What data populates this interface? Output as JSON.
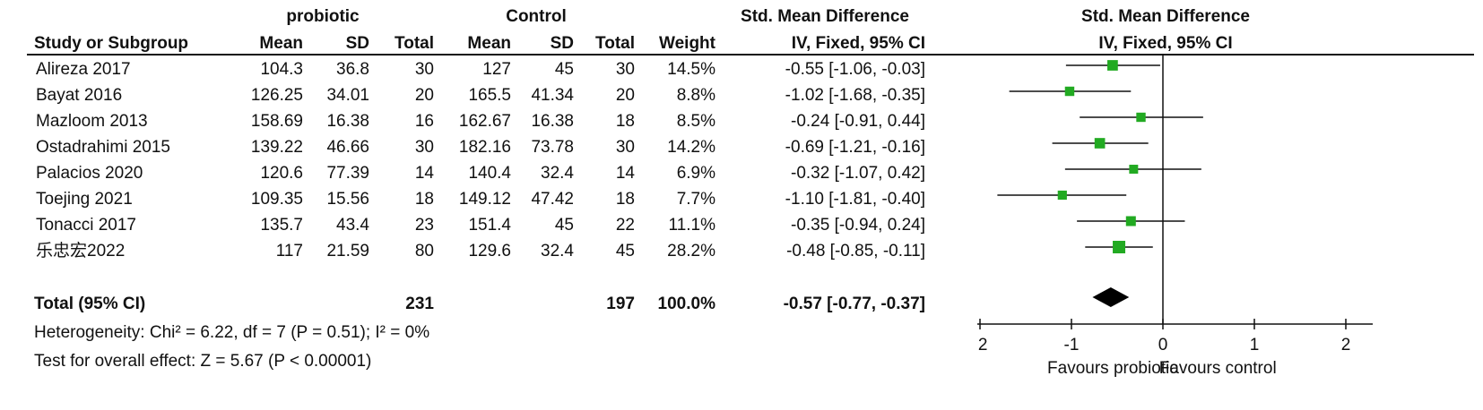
{
  "headers": {
    "group_exp": "probiotic",
    "group_ctrl": "Control",
    "smd_title": "Std. Mean Difference",
    "study": "Study or Subgroup",
    "mean": "Mean",
    "sd": "SD",
    "total": "Total",
    "weight": "Weight",
    "method": "IV, Fixed, 95% CI",
    "plot_title": "Std. Mean Difference",
    "plot_method": "IV, Fixed, 95% CI"
  },
  "studies": [
    {
      "name": "Alireza 2017",
      "m1": "104.3",
      "sd1": "36.8",
      "n1": "30",
      "m2": "127",
      "sd2": "45",
      "n2": "30",
      "weight": "14.5%",
      "ci": "-0.55 [-1.06, -0.03]"
    },
    {
      "name": "Bayat 2016",
      "m1": "126.25",
      "sd1": "34.01",
      "n1": "20",
      "m2": "165.5",
      "sd2": "41.34",
      "n2": "20",
      "weight": "8.8%",
      "ci": "-1.02 [-1.68, -0.35]"
    },
    {
      "name": "Mazloom 2013",
      "m1": "158.69",
      "sd1": "16.38",
      "n1": "16",
      "m2": "162.67",
      "sd2": "16.38",
      "n2": "18",
      "weight": "8.5%",
      "ci": "-0.24 [-0.91, 0.44]"
    },
    {
      "name": "Ostadrahimi 2015",
      "m1": "139.22",
      "sd1": "46.66",
      "n1": "30",
      "m2": "182.16",
      "sd2": "73.78",
      "n2": "30",
      "weight": "14.2%",
      "ci": "-0.69 [-1.21, -0.16]"
    },
    {
      "name": "Palacios 2020",
      "m1": "120.6",
      "sd1": "77.39",
      "n1": "14",
      "m2": "140.4",
      "sd2": "32.4",
      "n2": "14",
      "weight": "6.9%",
      "ci": "-0.32 [-1.07, 0.42]"
    },
    {
      "name": "Toejing 2021",
      "m1": "109.35",
      "sd1": "15.56",
      "n1": "18",
      "m2": "149.12",
      "sd2": "47.42",
      "n2": "18",
      "weight": "7.7%",
      "ci": "-1.10 [-1.81, -0.40]"
    },
    {
      "name": "Tonacci 2017",
      "m1": "135.7",
      "sd1": "43.4",
      "n1": "23",
      "m2": "151.4",
      "sd2": "45",
      "n2": "22",
      "weight": "11.1%",
      "ci": "-0.35 [-0.94, 0.24]"
    },
    {
      "name": "乐忠宏2022",
      "m1": "117",
      "sd1": "21.59",
      "n1": "80",
      "m2": "129.6",
      "sd2": "32.4",
      "n2": "45",
      "weight": "28.2%",
      "ci": "-0.48 [-0.85, -0.11]"
    }
  ],
  "total": {
    "label": "Total (95% CI)",
    "n1": "231",
    "n2": "197",
    "weight": "100.0%",
    "ci": "-0.57 [-0.77, -0.37]"
  },
  "heterogeneity": "Heterogeneity: Chi² = 6.22, df = 7 (P = 0.51); I² = 0%",
  "overall_effect": "Test for overall effect: Z = 5.67 (P < 0.00001)",
  "colors": {
    "marker": "#22aa22",
    "diamond": "#000000",
    "text": "#111111"
  },
  "chart_data": {
    "type": "forest",
    "xlim": [
      -2,
      2
    ],
    "xticks": [
      "-2",
      "-1",
      "0",
      "1",
      "2"
    ],
    "favours_left": "Favours probiotic",
    "favours_right": "Favours control",
    "points": [
      {
        "est": -0.55,
        "lo": -1.06,
        "hi": -0.03,
        "weight": 14.5
      },
      {
        "est": -1.02,
        "lo": -1.68,
        "hi": -0.35,
        "weight": 8.8
      },
      {
        "est": -0.24,
        "lo": -0.91,
        "hi": 0.44,
        "weight": 8.5
      },
      {
        "est": -0.69,
        "lo": -1.21,
        "hi": -0.16,
        "weight": 14.2
      },
      {
        "est": -0.32,
        "lo": -1.07,
        "hi": 0.42,
        "weight": 6.9
      },
      {
        "est": -1.1,
        "lo": -1.81,
        "hi": -0.4,
        "weight": 7.7
      },
      {
        "est": -0.35,
        "lo": -0.94,
        "hi": 0.24,
        "weight": 11.1
      },
      {
        "est": -0.48,
        "lo": -0.85,
        "hi": -0.11,
        "weight": 28.2
      }
    ],
    "pooled": {
      "est": -0.57,
      "lo": -0.77,
      "hi": -0.37
    }
  }
}
